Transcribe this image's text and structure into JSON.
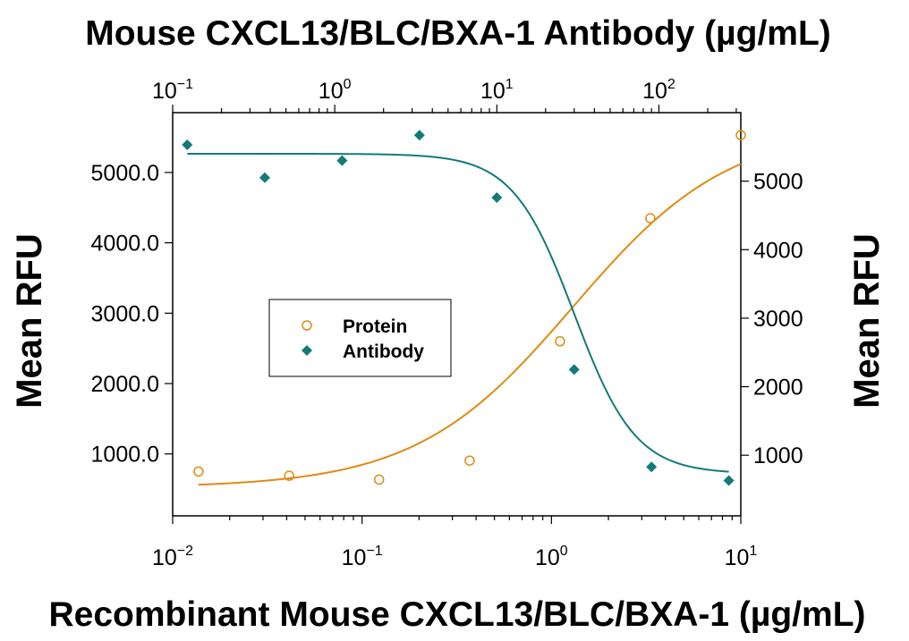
{
  "chart_data": {
    "type": "scatter",
    "title": "Mouse CXCL13/BLC/BXA-1 Antibody (µg/mL)",
    "xlabel": "Recombinant Mouse CXCL13/BLC/BXA-1 (µg/mL)",
    "ylabel_left": "Mean RFU",
    "ylabel_right": "Mean RFU",
    "x_bottom": {
      "scale": "log",
      "lim": [
        0.01,
        10
      ],
      "ticks": [
        "10-2",
        "10-1",
        "100",
        "101"
      ]
    },
    "x_top": {
      "scale": "log",
      "lim": [
        0.1,
        320
      ],
      "ticks": [
        "10-1",
        "100",
        "101",
        "102"
      ]
    },
    "y_left": {
      "lim": [
        120,
        5850
      ],
      "ticks": [
        "1000.0",
        "2000.0",
        "3000.0",
        "4000.0",
        "5000.0"
      ]
    },
    "y_right": {
      "lim": [
        115,
        6000
      ],
      "ticks": [
        "1000",
        "2000",
        "3000",
        "4000",
        "5000"
      ]
    },
    "grid": false,
    "legend": "center-left",
    "series": [
      {
        "name": "Protein",
        "marker": "open-circle",
        "color": "#E08A12",
        "axis": "bottom-left",
        "points": [
          [
            0.0137,
            750
          ],
          [
            0.0412,
            690
          ],
          [
            0.123,
            635
          ],
          [
            0.37,
            905
          ],
          [
            1.11,
            2600
          ],
          [
            3.33,
            4350
          ],
          [
            10,
            5530
          ]
        ],
        "fit": {
          "bottom": 520,
          "top": 5660,
          "ec50": 1.3,
          "hill": 1.05
        }
      },
      {
        "name": "Antibody",
        "marker": "filled-diamond",
        "color": "#137A7A",
        "axis": "top-right",
        "points": [
          [
            0.123,
            5530
          ],
          [
            0.37,
            5050
          ],
          [
            1.11,
            5300
          ],
          [
            3.33,
            5670
          ],
          [
            10,
            4760
          ],
          [
            30,
            2250
          ],
          [
            90,
            830
          ],
          [
            270,
            630
          ]
        ],
        "fit": {
          "bottom": 730,
          "top": 5400,
          "ec50": 30,
          "hill": 2.3
        }
      }
    ]
  }
}
